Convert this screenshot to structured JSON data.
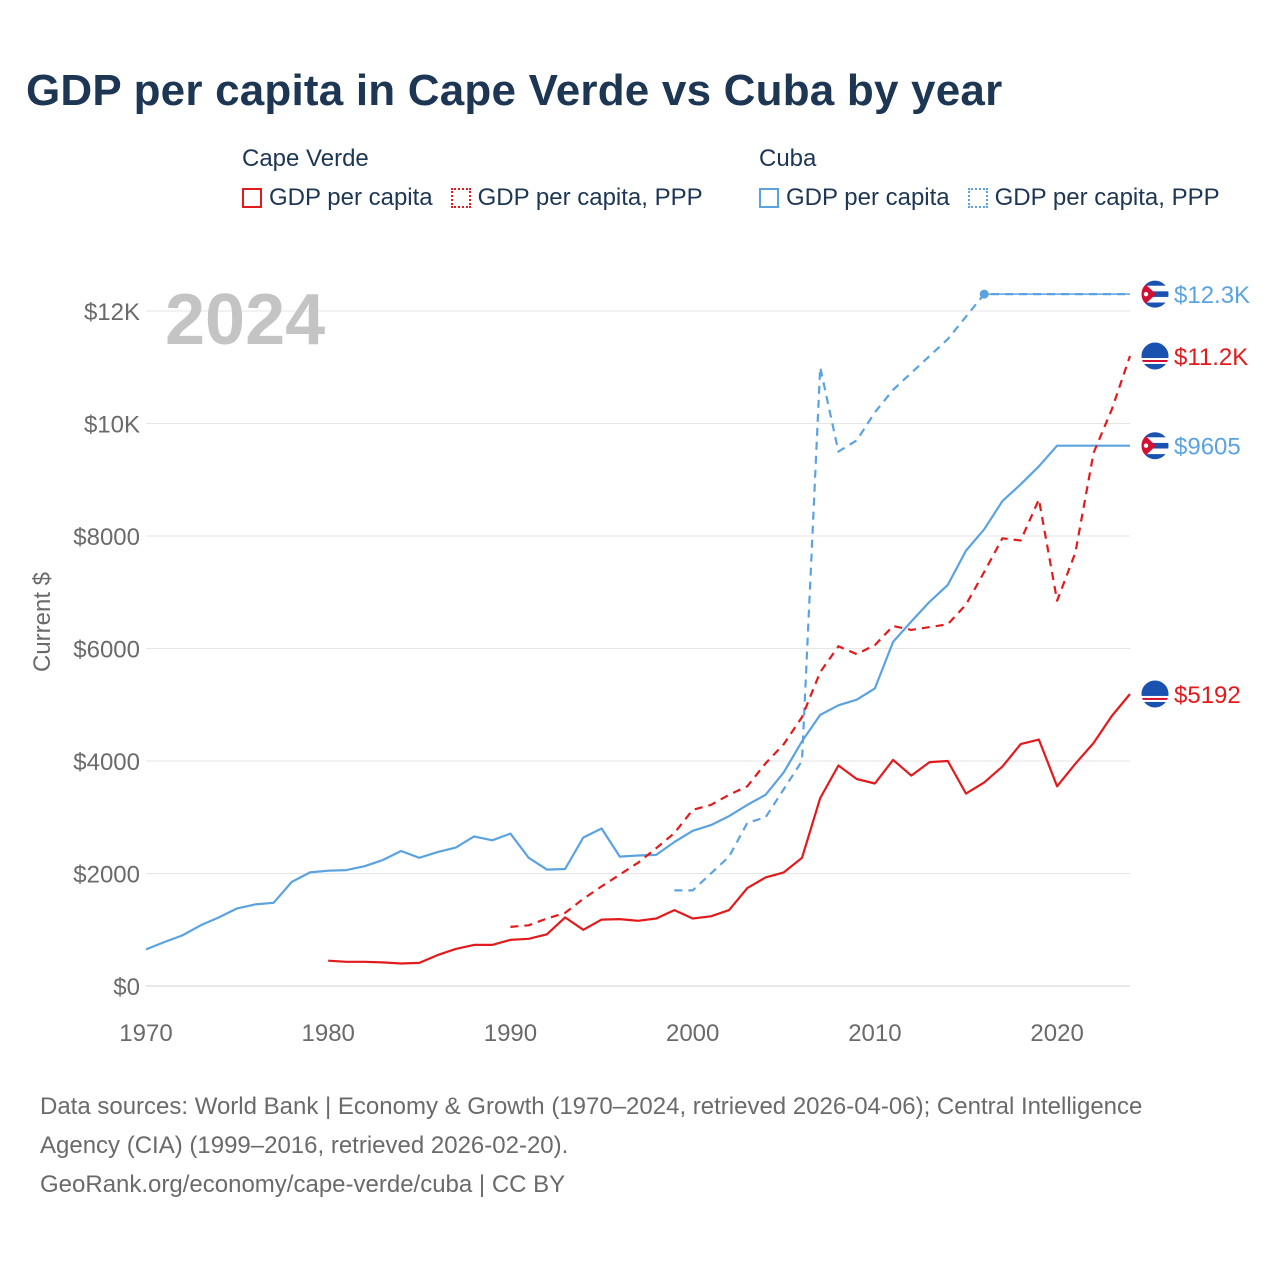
{
  "title": "GDP per capita in Cape Verde vs Cuba by year",
  "legend": {
    "groups": [
      {
        "name": "Cape Verde",
        "color": "#e31a1c",
        "items": [
          "GDP per capita",
          "GDP per capita, PPP"
        ]
      },
      {
        "name": "Cuba",
        "color": "#5ba3e0",
        "items": [
          "GDP per capita",
          "GDP per capita, PPP"
        ]
      }
    ]
  },
  "chart_data": {
    "type": "line",
    "title": "GDP per capita in Cape Verde vs Cuba by year",
    "year_label": "2024",
    "xlabel": "",
    "ylabel": "Current $",
    "xlim": [
      1970,
      2024
    ],
    "ylim": [
      0,
      12500
    ],
    "x_ticks": [
      1970,
      1980,
      1990,
      2000,
      2010,
      2020
    ],
    "y_ticks": [
      {
        "value": 0,
        "label": "$0"
      },
      {
        "value": 2000,
        "label": "$2000"
      },
      {
        "value": 4000,
        "label": "$4000"
      },
      {
        "value": 6000,
        "label": "$6000"
      },
      {
        "value": 8000,
        "label": "$8000"
      },
      {
        "value": 10000,
        "label": "$10K"
      },
      {
        "value": 12000,
        "label": "$12K"
      }
    ],
    "grid": true,
    "series": [
      {
        "name": "Cuba GDP per capita",
        "country": "Cuba",
        "color": "#5ba3e0",
        "dash": false,
        "end_label": "$9605",
        "points": [
          [
            1970,
            650
          ],
          [
            1971,
            780
          ],
          [
            1972,
            900
          ],
          [
            1973,
            1080
          ],
          [
            1974,
            1220
          ],
          [
            1975,
            1380
          ],
          [
            1976,
            1450
          ],
          [
            1977,
            1480
          ],
          [
            1978,
            1850
          ],
          [
            1979,
            2020
          ],
          [
            1980,
            2050
          ],
          [
            1981,
            2060
          ],
          [
            1982,
            2130
          ],
          [
            1983,
            2240
          ],
          [
            1984,
            2400
          ],
          [
            1985,
            2280
          ],
          [
            1986,
            2380
          ],
          [
            1987,
            2460
          ],
          [
            1988,
            2660
          ],
          [
            1989,
            2590
          ],
          [
            1990,
            2710
          ],
          [
            1991,
            2280
          ],
          [
            1992,
            2070
          ],
          [
            1993,
            2080
          ],
          [
            1994,
            2640
          ],
          [
            1995,
            2800
          ],
          [
            1996,
            2300
          ],
          [
            1997,
            2320
          ],
          [
            1998,
            2330
          ],
          [
            1999,
            2560
          ],
          [
            2000,
            2760
          ],
          [
            2001,
            2860
          ],
          [
            2002,
            3020
          ],
          [
            2003,
            3220
          ],
          [
            2004,
            3400
          ],
          [
            2005,
            3800
          ],
          [
            2006,
            4350
          ],
          [
            2007,
            4820
          ],
          [
            2008,
            4990
          ],
          [
            2009,
            5090
          ],
          [
            2010,
            5290
          ],
          [
            2011,
            6120
          ],
          [
            2012,
            6480
          ],
          [
            2013,
            6830
          ],
          [
            2014,
            7130
          ],
          [
            2015,
            7740
          ],
          [
            2016,
            8120
          ],
          [
            2017,
            8620
          ],
          [
            2018,
            8920
          ],
          [
            2019,
            9240
          ],
          [
            2020,
            9605
          ],
          [
            2024,
            9605
          ]
        ]
      },
      {
        "name": "Cuba GDP per capita, PPP",
        "country": "Cuba",
        "color": "#5ba3e0",
        "dash": true,
        "end_label": "$12.3K",
        "end_dot_year": 2016,
        "points": [
          [
            1999,
            1700
          ],
          [
            2000,
            1700
          ],
          [
            2001,
            2000
          ],
          [
            2002,
            2300
          ],
          [
            2003,
            2900
          ],
          [
            2004,
            3000
          ],
          [
            2005,
            3500
          ],
          [
            2006,
            4000
          ],
          [
            2007,
            11000
          ],
          [
            2008,
            9500
          ],
          [
            2009,
            9700
          ],
          [
            2010,
            10200
          ],
          [
            2011,
            10600
          ],
          [
            2012,
            10900
          ],
          [
            2013,
            11200
          ],
          [
            2014,
            11500
          ],
          [
            2015,
            11900
          ],
          [
            2016,
            12300
          ],
          [
            2024,
            12300
          ]
        ]
      },
      {
        "name": "Cape Verde GDP per capita",
        "country": "Cape Verde",
        "color": "#e31a1c",
        "dash": false,
        "end_label": "$5192",
        "points": [
          [
            1980,
            450
          ],
          [
            1981,
            430
          ],
          [
            1982,
            430
          ],
          [
            1983,
            420
          ],
          [
            1984,
            400
          ],
          [
            1985,
            410
          ],
          [
            1986,
            550
          ],
          [
            1987,
            660
          ],
          [
            1988,
            730
          ],
          [
            1989,
            730
          ],
          [
            1990,
            820
          ],
          [
            1991,
            840
          ],
          [
            1992,
            920
          ],
          [
            1993,
            1220
          ],
          [
            1994,
            1000
          ],
          [
            1995,
            1180
          ],
          [
            1996,
            1190
          ],
          [
            1997,
            1160
          ],
          [
            1998,
            1200
          ],
          [
            1999,
            1350
          ],
          [
            2000,
            1200
          ],
          [
            2001,
            1240
          ],
          [
            2002,
            1350
          ],
          [
            2003,
            1740
          ],
          [
            2004,
            1930
          ],
          [
            2005,
            2020
          ],
          [
            2006,
            2280
          ],
          [
            2007,
            3340
          ],
          [
            2008,
            3920
          ],
          [
            2009,
            3680
          ],
          [
            2010,
            3600
          ],
          [
            2011,
            4020
          ],
          [
            2012,
            3740
          ],
          [
            2013,
            3980
          ],
          [
            2014,
            4000
          ],
          [
            2015,
            3420
          ],
          [
            2016,
            3620
          ],
          [
            2017,
            3900
          ],
          [
            2018,
            4300
          ],
          [
            2019,
            4380
          ],
          [
            2020,
            3550
          ],
          [
            2021,
            3950
          ],
          [
            2022,
            4320
          ],
          [
            2023,
            4800
          ],
          [
            2024,
            5192
          ]
        ]
      },
      {
        "name": "Cape Verde GDP per capita, PPP",
        "country": "Cape Verde",
        "color": "#e31a1c",
        "dash": true,
        "end_label": "$11.2K",
        "points": [
          [
            1990,
            1050
          ],
          [
            1991,
            1080
          ],
          [
            1992,
            1200
          ],
          [
            1993,
            1300
          ],
          [
            1994,
            1550
          ],
          [
            1995,
            1770
          ],
          [
            1996,
            1980
          ],
          [
            1997,
            2190
          ],
          [
            1998,
            2450
          ],
          [
            1999,
            2720
          ],
          [
            2000,
            3130
          ],
          [
            2001,
            3220
          ],
          [
            2002,
            3400
          ],
          [
            2003,
            3550
          ],
          [
            2004,
            3960
          ],
          [
            2005,
            4300
          ],
          [
            2006,
            4780
          ],
          [
            2007,
            5580
          ],
          [
            2008,
            6040
          ],
          [
            2009,
            5900
          ],
          [
            2010,
            6060
          ],
          [
            2011,
            6400
          ],
          [
            2012,
            6330
          ],
          [
            2013,
            6380
          ],
          [
            2014,
            6430
          ],
          [
            2015,
            6780
          ],
          [
            2016,
            7360
          ],
          [
            2017,
            7960
          ],
          [
            2018,
            7920
          ],
          [
            2019,
            8650
          ],
          [
            2020,
            6850
          ],
          [
            2021,
            7700
          ],
          [
            2022,
            9480
          ],
          [
            2023,
            10250
          ],
          [
            2024,
            11200
          ]
        ]
      }
    ]
  },
  "footer": {
    "line1": "Data sources: World Bank | Economy & Growth (1970–2024, retrieved 2026-04-06); Central Intelligence",
    "line2": "Agency (CIA) (1999–2016, retrieved 2026-02-20).",
    "line3": "GeoRank.org/economy/cape-verde/cuba | CC BY"
  }
}
